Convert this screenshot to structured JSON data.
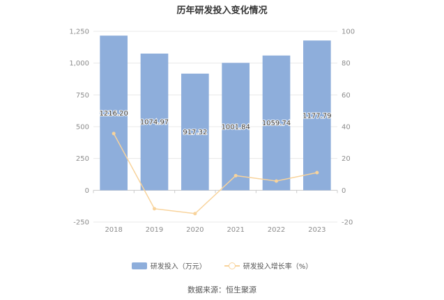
{
  "title": "历年研发投入变化情况",
  "source": "数据来源：恒生聚源",
  "colors": {
    "bar": "#8eaedb",
    "line": "#f8d39b",
    "grid": "#e8e8e8",
    "axis": "#c9c9c9"
  },
  "legend": [
    {
      "label": "研发投入（万元）",
      "kind": "bar"
    },
    {
      "label": "研发投入增长率（%）",
      "kind": "line"
    }
  ],
  "chart_data": {
    "type": "bar",
    "title": "历年研发投入变化情况",
    "categories": [
      "2018",
      "2019",
      "2020",
      "2021",
      "2022",
      "2023"
    ],
    "series": [
      {
        "name": "研发投入（万元）",
        "type": "bar",
        "axis": "left",
        "values": [
          1216.2,
          1074.97,
          917.32,
          1001.84,
          1059.74,
          1177.79
        ],
        "labels": [
          "1216.20",
          "1074.97",
          "917.32",
          "1001.84",
          "1059.74",
          "1177.79"
        ]
      },
      {
        "name": "研发投入增长率（%）",
        "type": "line",
        "axis": "right",
        "values": [
          35.7,
          -11.6,
          -14.7,
          9.2,
          5.8,
          11.1
        ]
      }
    ],
    "y_left": {
      "min": -250,
      "max": 1250,
      "ticks": [
        -250,
        0,
        250,
        500,
        750,
        1000,
        1250
      ],
      "tick_labels": [
        "-250",
        "0",
        "250",
        "500",
        "750",
        "1,000",
        "1,250"
      ]
    },
    "y_right": {
      "min": -20,
      "max": 100,
      "ticks": [
        -20,
        0,
        20,
        40,
        60,
        80,
        100
      ],
      "tick_labels": [
        "-20",
        "0",
        "20",
        "40",
        "60",
        "80",
        "100"
      ]
    },
    "grid": true,
    "legend_position": "bottom"
  }
}
